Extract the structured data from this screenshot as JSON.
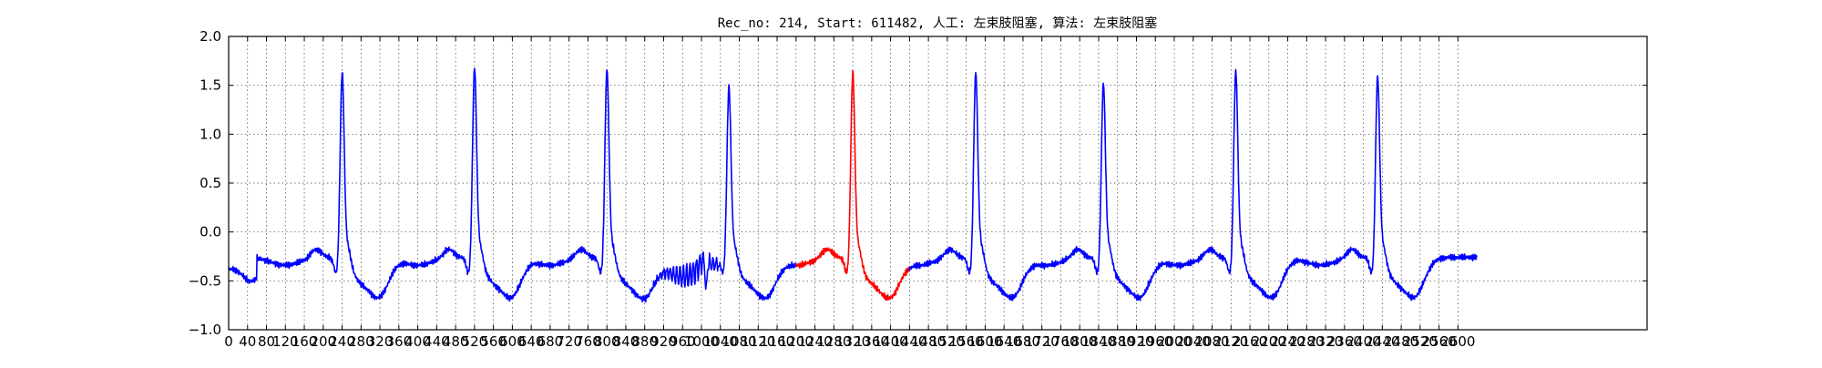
{
  "chart_data": {
    "type": "line",
    "title": "Rec_no: 214, Start: 611482, 人工: 左束肢阻塞, 算法: 左束肢阻塞",
    "xlabel": "",
    "ylabel": "",
    "xlim": [
      0,
      3000
    ],
    "ylim": [
      -1.0,
      2.0
    ],
    "grid": true,
    "yticks": [
      -1.0,
      -0.5,
      0.0,
      0.5,
      1.0,
      1.5,
      2.0
    ],
    "ytick_labels": [
      "−1.0",
      "−0.5",
      "0.0",
      "0.5",
      "1.0",
      "1.5",
      "2.0"
    ],
    "xticks": [
      0,
      40,
      80,
      120,
      160,
      200,
      240,
      280,
      320,
      360,
      400,
      440,
      480,
      520,
      560,
      600,
      640,
      680,
      720,
      760,
      800,
      840,
      880,
      920,
      960,
      1000,
      1040,
      1080,
      1120,
      1160,
      1200,
      1240,
      1280,
      1320,
      1360,
      1400,
      1440,
      1480,
      1520,
      1560,
      1600,
      1640,
      1680,
      1720,
      1760,
      1800,
      1840,
      1880,
      1920,
      1960,
      2000,
      2040,
      2080,
      2120,
      2160,
      2200,
      2240,
      2280,
      2320,
      2360,
      2400,
      2440,
      2480,
      2520,
      2560,
      2600
    ],
    "xtick_labels": [
      "0",
      "40",
      "80",
      "120",
      "160",
      "200",
      "240",
      "280",
      "320",
      "360",
      "400",
      "440",
      "480",
      "520",
      "560",
      "600",
      "640",
      "680",
      "720",
      "760",
      "800",
      "840",
      "880",
      "920",
      "960",
      "1000",
      "1040",
      "1080",
      "1120",
      "1160",
      "1200",
      "1240",
      "1280",
      "1320",
      "1360",
      "1400",
      "1440",
      "1480",
      "1520",
      "1560",
      "1600",
      "1640",
      "1680",
      "1720",
      "1760",
      "1800",
      "1840",
      "1880",
      "1920",
      "1960",
      "2000",
      "2040",
      "2080",
      "2120",
      "2160",
      "2200",
      "2240",
      "2280",
      "2320",
      "2360",
      "2400",
      "2440",
      "2480",
      "2520",
      "2560",
      "2600"
    ],
    "x_end": 2640,
    "highlight_range": [
      1200,
      1440
    ],
    "beats_r_peak_x": [
      240,
      520,
      800,
      1058,
      1320,
      1580,
      1850,
      2130,
      2430
    ],
    "beats_r_peak_y": [
      1.58,
      1.63,
      1.61,
      1.43,
      1.58,
      1.58,
      1.47,
      1.59,
      1.54
    ],
    "colors": {
      "signal": "#0000ff",
      "highlight": "#ff0000",
      "grid": "#000000",
      "frame": "#000000"
    }
  }
}
